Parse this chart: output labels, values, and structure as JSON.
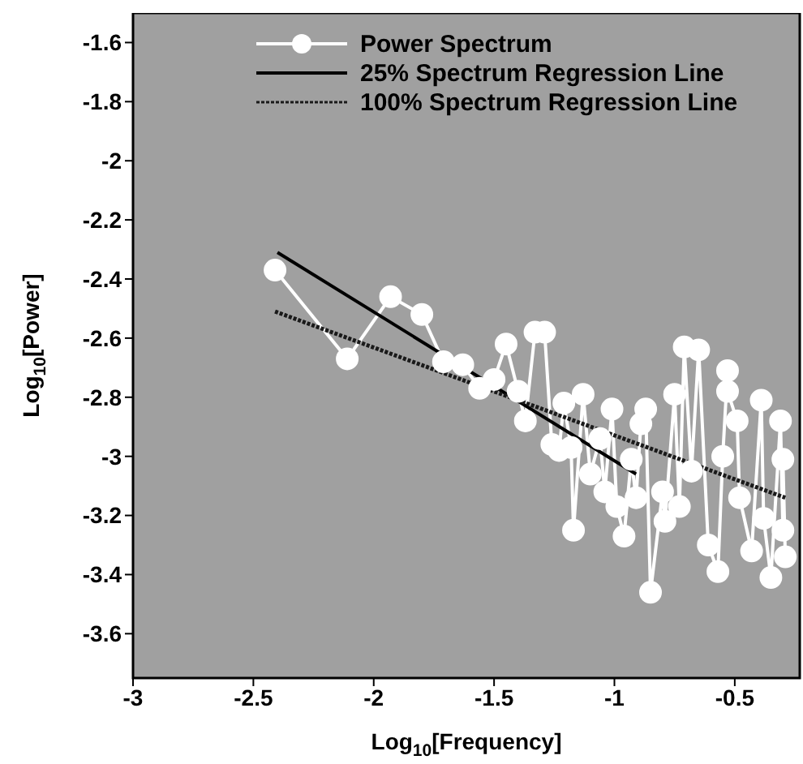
{
  "chart_data": {
    "type": "line",
    "xlabel": "Log$_{10}$[Frequency]",
    "ylabel": "Log$_{10}$[Power]",
    "xlim": [
      -3,
      -0.23
    ],
    "ylim": [
      -3.75,
      -1.5
    ],
    "xticks": [
      -3,
      -2.5,
      -2,
      -1.5,
      -1,
      -0.5
    ],
    "yticks": [
      -3.6,
      -3.4,
      -3.2,
      -3,
      -2.8,
      -2.6,
      -2.4,
      -2.2,
      -2,
      -1.8,
      -1.6
    ],
    "legend": "top",
    "series": [
      {
        "name": "Power Spectrum",
        "color": "#ffffff",
        "marker": "circle",
        "line_style": "solid",
        "x": [
          -2.41,
          -2.11,
          -1.93,
          -1.8,
          -1.71,
          -1.63,
          -1.56,
          -1.5,
          -1.45,
          -1.4,
          -1.37,
          -1.33,
          -1.29,
          -1.26,
          -1.23,
          -1.21,
          -1.18,
          -1.17,
          -1.13,
          -1.1,
          -1.06,
          -1.04,
          -1.01,
          -0.99,
          -0.96,
          -0.93,
          -0.91,
          -0.89,
          -0.87,
          -0.85,
          -0.8,
          -0.79,
          -0.75,
          -0.73,
          -0.71,
          -0.68,
          -0.65,
          -0.61,
          -0.57,
          -0.55,
          -0.53,
          -0.53,
          -0.49,
          -0.48,
          -0.43,
          -0.39,
          -0.38,
          -0.35,
          -0.31,
          -0.3,
          -0.3,
          -0.29
        ],
        "values": [
          -2.37,
          -2.67,
          -2.46,
          -2.52,
          -2.68,
          -2.69,
          -2.77,
          -2.74,
          -2.62,
          -2.78,
          -2.88,
          -2.58,
          -2.58,
          -2.96,
          -2.98,
          -2.82,
          -2.97,
          -3.25,
          -2.79,
          -3.06,
          -2.94,
          -3.12,
          -2.84,
          -3.17,
          -3.27,
          -3.01,
          -3.14,
          -2.89,
          -2.84,
          -3.46,
          -3.12,
          -3.22,
          -2.79,
          -3.17,
          -2.63,
          -3.05,
          -2.64,
          -3.3,
          -3.39,
          -3,
          -2.71,
          -2.78,
          -2.88,
          -3.14,
          -3.32,
          -2.81,
          -3.21,
          -3.41,
          -2.88,
          -3.25,
          -3.01,
          -3.34
        ]
      },
      {
        "name": "25% Spectrum Regression Line",
        "color": "#000000",
        "marker": "none",
        "line_style": "solid",
        "x": [
          -2.4,
          -0.91
        ],
        "values": [
          -2.31,
          -3.06
        ]
      },
      {
        "name": "100% Spectrum Regression Line",
        "color": "#1a1a1a",
        "marker": "none",
        "line_style": "dotted",
        "x": [
          -2.41,
          -0.29
        ],
        "values": [
          -2.51,
          -3.14
        ]
      }
    ]
  }
}
